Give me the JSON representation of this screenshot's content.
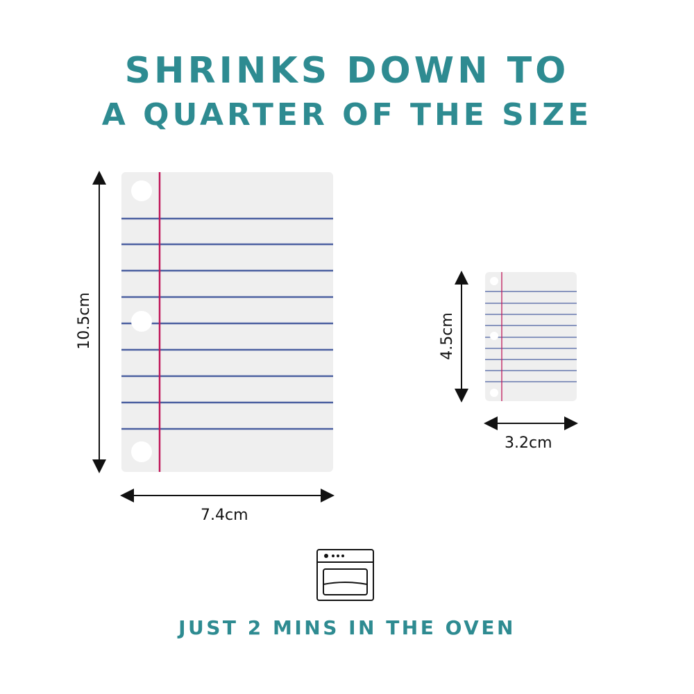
{
  "headline": {
    "line1": "SHRINKS DOWN TO",
    "line2": "A QUARTER OF THE SIZE"
  },
  "before": {
    "height_label": "10.5cm",
    "width_label": "7.4cm"
  },
  "after": {
    "height_label": "4.5cm",
    "width_label": "3.2cm"
  },
  "footer": {
    "text": "JUST 2 MINS IN THE OVEN",
    "icon": "oven-icon"
  },
  "colors": {
    "accent": "#2e8b91",
    "paper": "#efefef",
    "rule": "#4a5fa0",
    "margin": "#c0185a"
  }
}
